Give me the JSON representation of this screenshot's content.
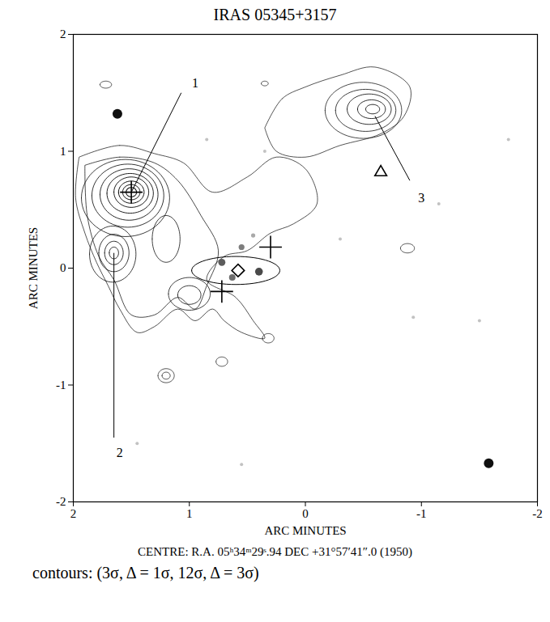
{
  "chart_data": {
    "type": "contour",
    "title": "IRAS 05345+3157",
    "xlabel": "ARC MINUTES",
    "ylabel": "ARC MINUTES",
    "caption": "CENTRE: R.A. 05ʰ34ᵐ29ˢ.94  DEC +31°57′41″.0 (1950)",
    "contour_note": "contours: (3σ, Δ = 1σ, 12σ, Δ = 3σ)",
    "xlim": [
      2,
      -2
    ],
    "ylim": [
      -2,
      2
    ],
    "xticks": [
      2,
      1,
      0,
      -1,
      -2
    ],
    "yticks": [
      -2,
      -1,
      0,
      1,
      2
    ],
    "contours": [
      {
        "level": 3,
        "x": [
          1.95,
          1.6,
          1.3,
          1.05,
          0.8,
          0.5,
          0.25,
          0.0,
          -0.1,
          0.1,
          0.3,
          0.5,
          0.7,
          0.85,
          0.6,
          0.45,
          0.35,
          0.55,
          0.7,
          0.8,
          0.95,
          1.1,
          1.3,
          1.45,
          1.6,
          1.7,
          1.8,
          1.9,
          1.98,
          1.95
        ],
        "y": [
          0.95,
          1.05,
          0.98,
          0.9,
          0.65,
          0.78,
          0.95,
          0.85,
          0.55,
          0.38,
          0.3,
          0.15,
          0.1,
          -0.1,
          -0.25,
          -0.45,
          -0.6,
          -0.55,
          -0.45,
          -0.35,
          -0.45,
          -0.35,
          -0.5,
          -0.55,
          -0.35,
          -0.15,
          0.05,
          0.3,
          0.6,
          0.95
        ]
      },
      {
        "level": 4,
        "x": [
          1.9,
          1.6,
          1.3,
          1.1,
          0.9,
          0.75,
          0.85,
          0.95,
          1.1,
          1.3,
          1.5,
          1.65,
          1.78,
          1.88,
          1.9
        ],
        "y": [
          0.88,
          0.95,
          0.9,
          0.75,
          0.45,
          0.15,
          -0.15,
          -0.35,
          -0.25,
          -0.4,
          -0.4,
          -0.1,
          0.1,
          0.45,
          0.88
        ]
      },
      {
        "level": 3,
        "x": [
          0.35,
          0.2,
          0.0,
          -0.3,
          -0.6,
          -0.9,
          -0.85,
          -0.65,
          -0.3,
          0.0,
          0.25,
          0.35
        ],
        "y": [
          1.2,
          1.45,
          1.55,
          1.65,
          1.72,
          1.55,
          1.3,
          1.15,
          1.05,
          0.95,
          1.0,
          1.2
        ]
      }
    ],
    "contour_rings": [
      {
        "level": 5,
        "cx": 1.55,
        "cy": 0.6,
        "rx": 0.38,
        "ry": 0.33
      },
      {
        "level": 6,
        "cx": 1.53,
        "cy": 0.62,
        "rx": 0.31,
        "ry": 0.27
      },
      {
        "level": 7,
        "cx": 1.52,
        "cy": 0.63,
        "rx": 0.25,
        "ry": 0.22
      },
      {
        "level": 8,
        "cx": 1.51,
        "cy": 0.64,
        "rx": 0.2,
        "ry": 0.17
      },
      {
        "level": 9,
        "cx": 1.5,
        "cy": 0.65,
        "rx": 0.15,
        "ry": 0.13
      },
      {
        "level": 10,
        "cx": 1.5,
        "cy": 0.65,
        "rx": 0.11,
        "ry": 0.095
      },
      {
        "level": 11,
        "cx": 1.5,
        "cy": 0.65,
        "rx": 0.075,
        "ry": 0.065
      },
      {
        "level": 12,
        "cx": 1.5,
        "cy": 0.65,
        "rx": 0.045,
        "ry": 0.04
      },
      {
        "level": 5,
        "cx": 1.66,
        "cy": 0.12,
        "rx": 0.2,
        "ry": 0.24
      },
      {
        "level": 6,
        "cx": 1.65,
        "cy": 0.13,
        "rx": 0.13,
        "ry": 0.16
      },
      {
        "level": 7,
        "cx": 1.65,
        "cy": 0.13,
        "rx": 0.08,
        "ry": 0.1
      },
      {
        "level": 8,
        "cx": 1.65,
        "cy": 0.13,
        "rx": 0.04,
        "ry": 0.05
      },
      {
        "level": 5,
        "cx": 1.0,
        "cy": -0.22,
        "rx": 0.18,
        "ry": 0.14
      },
      {
        "level": 6,
        "cx": 1.0,
        "cy": -0.23,
        "rx": 0.1,
        "ry": 0.08
      },
      {
        "level": 5,
        "cx": 1.2,
        "cy": 0.25,
        "rx": 0.12,
        "ry": 0.2
      },
      {
        "level": 4,
        "cx": -0.5,
        "cy": 1.35,
        "rx": 0.33,
        "ry": 0.24
      },
      {
        "level": 5,
        "cx": -0.52,
        "cy": 1.35,
        "rx": 0.26,
        "ry": 0.18
      },
      {
        "level": 6,
        "cx": -0.55,
        "cy": 1.36,
        "rx": 0.19,
        "ry": 0.13
      },
      {
        "level": 7,
        "cx": -0.57,
        "cy": 1.36,
        "rx": 0.12,
        "ry": 0.08
      },
      {
        "level": 8,
        "cx": -0.58,
        "cy": 1.36,
        "rx": 0.06,
        "ry": 0.04
      },
      {
        "level": 3,
        "cx": 1.72,
        "cy": 1.57,
        "rx": 0.05,
        "ry": 0.03
      },
      {
        "level": 3,
        "cx": 1.2,
        "cy": -0.92,
        "rx": 0.07,
        "ry": 0.06
      },
      {
        "level": 4,
        "cx": 1.2,
        "cy": -0.92,
        "rx": 0.035,
        "ry": 0.03
      },
      {
        "level": 3,
        "cx": 0.32,
        "cy": -0.6,
        "rx": 0.05,
        "ry": 0.04
      },
      {
        "level": 3,
        "cx": 0.72,
        "cy": -0.8,
        "rx": 0.05,
        "ry": 0.04
      },
      {
        "level": 3,
        "cx": -0.88,
        "cy": 0.17,
        "rx": 0.06,
        "ry": 0.04
      },
      {
        "level": 3,
        "cx": 0.35,
        "cy": 1.58,
        "rx": 0.03,
        "ry": 0.02
      }
    ],
    "stars": [
      {
        "x": 1.62,
        "y": 1.32,
        "brightness": 3
      },
      {
        "x": -1.58,
        "y": -1.67,
        "brightness": 3
      },
      {
        "x": 0.72,
        "y": 0.05,
        "brightness": 2.2
      },
      {
        "x": 0.4,
        "y": -0.03,
        "brightness": 2.4
      },
      {
        "x": 0.63,
        "y": -0.08,
        "brightness": 2
      },
      {
        "x": 0.55,
        "y": 0.18,
        "brightness": 1.8
      },
      {
        "x": 0.45,
        "y": 0.28,
        "brightness": 1.3
      },
      {
        "x": 0.85,
        "y": 1.1,
        "brightness": 1
      },
      {
        "x": 0.35,
        "y": 1.0,
        "brightness": 1
      },
      {
        "x": -0.93,
        "y": -0.42,
        "brightness": 1
      },
      {
        "x": -1.15,
        "y": 0.55,
        "brightness": 1
      },
      {
        "x": 1.45,
        "y": -1.5,
        "brightness": 1
      },
      {
        "x": 0.55,
        "y": -1.68,
        "brightness": 1
      },
      {
        "x": -1.5,
        "y": -0.45,
        "brightness": 1
      },
      {
        "x": -0.3,
        "y": 0.25,
        "brightness": 1
      },
      {
        "x": -1.75,
        "y": 1.1,
        "brightness": 1
      }
    ],
    "markers": [
      {
        "x": 1.5,
        "y": 0.65,
        "marker": "plus"
      },
      {
        "x": 0.72,
        "y": -0.2,
        "marker": "plus"
      },
      {
        "x": 0.3,
        "y": 0.18,
        "marker": "plus"
      },
      {
        "x": 0.58,
        "y": -0.02,
        "marker": "diamond"
      },
      {
        "x": -0.65,
        "y": 0.82,
        "marker": "triangle"
      }
    ],
    "ellipse": {
      "cx": 0.6,
      "cy": -0.02,
      "rx": 0.38,
      "ry": 0.12
    },
    "annotations": [
      {
        "text": "1",
        "x": 0.95,
        "y": 1.58,
        "x1": 1.5,
        "y1": 0.65,
        "x2": 1.07,
        "y2": 1.5
      },
      {
        "text": "2",
        "x": 1.6,
        "y": -1.58,
        "x1": 1.65,
        "y1": 0.13,
        "x2": 1.65,
        "y2": -1.45
      },
      {
        "text": "3",
        "x": -1.0,
        "y": 0.6,
        "x1": -0.6,
        "y1": 1.3,
        "x2": -0.9,
        "y2": 0.75
      }
    ]
  }
}
